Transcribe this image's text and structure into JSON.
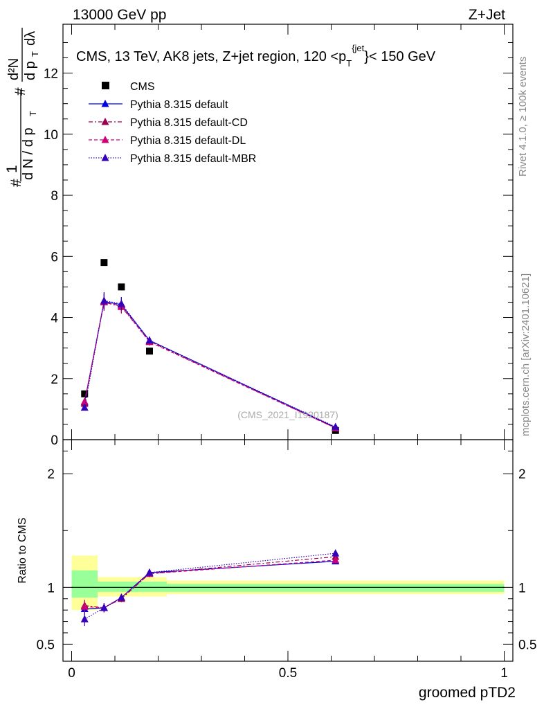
{
  "header": {
    "left": "13000 GeV pp",
    "right": "Z+Jet"
  },
  "side_labels": {
    "rivet": "Rivet 4.1.0, ≥ 100k events",
    "mcplots": "mcplots.cern.ch [arXiv:2401.10621]"
  },
  "plot_title": "CMS, 13 TeV, AK8 jets, Z+jet region, 120 <p_T^{jet}< 150 GeV",
  "watermark": "(CMS_2021_I1920187)",
  "y_axis_label": "1/(dN/dp_T) d²N/(dp_T dλ)",
  "ratio_axis_label": "Ratio to CMS",
  "x_axis_label": "groomed pTD2",
  "colors": {
    "data": "#000000",
    "default": "#0000dd",
    "cd": "#99004d",
    "dl": "#cc0077",
    "mbr": "#3300bb",
    "band_inner": "#99ff99",
    "band_outer": "#ffff99"
  },
  "chart_data": [
    {
      "type": "scatter",
      "panel": "main",
      "xlim": [
        -0.02,
        1.02
      ],
      "ylim": [
        0,
        13.6
      ],
      "yticks": [
        0,
        2,
        4,
        6,
        8,
        10,
        12
      ],
      "ytick_labels": [
        "0",
        "2",
        "4",
        "6",
        "8",
        "10",
        "12"
      ],
      "legend_position": "top-left",
      "series": [
        {
          "name": "CMS",
          "key": "data",
          "style": "square",
          "x": [
            0.03,
            0.075,
            0.115,
            0.18,
            0.61
          ],
          "y": [
            1.5,
            5.8,
            5.0,
            2.9,
            0.3
          ]
        },
        {
          "name": "Pythia 8.315 default",
          "key": "default",
          "style": "solid",
          "x": [
            0.03,
            0.075,
            0.115,
            0.18,
            0.61
          ],
          "y": [
            1.22,
            4.52,
            4.42,
            3.25,
            0.4
          ],
          "err": [
            0.08,
            0.28,
            0.22,
            0.12,
            0.03
          ]
        },
        {
          "name": "Pythia 8.315 default-CD",
          "key": "cd",
          "style": "dashdot",
          "x": [
            0.03,
            0.075,
            0.115,
            0.18,
            0.61
          ],
          "y": [
            1.18,
            4.5,
            4.35,
            3.22,
            0.38
          ],
          "err": [
            0.08,
            0.28,
            0.22,
            0.12,
            0.03
          ]
        },
        {
          "name": "Pythia 8.315 default-DL",
          "key": "dl",
          "style": "dashed",
          "x": [
            0.03,
            0.075,
            0.115,
            0.18,
            0.61
          ],
          "y": [
            1.25,
            4.5,
            4.38,
            3.2,
            0.38
          ],
          "err": [
            0.08,
            0.28,
            0.22,
            0.12,
            0.03
          ]
        },
        {
          "name": "Pythia 8.315 default-MBR",
          "key": "mbr",
          "style": "dotted",
          "x": [
            0.03,
            0.075,
            0.115,
            0.18,
            0.61
          ],
          "y": [
            1.05,
            4.55,
            4.45,
            3.25,
            0.42
          ],
          "err": [
            0.08,
            0.28,
            0.22,
            0.12,
            0.03
          ]
        }
      ]
    },
    {
      "type": "line",
      "panel": "ratio",
      "xlim": [
        -0.02,
        1.02
      ],
      "ylim": [
        0.35,
        2.3
      ],
      "yticks": [
        0.5,
        1,
        2
      ],
      "ytick_labels": [
        "0.5",
        "1",
        "2"
      ],
      "xticks": [
        0,
        0.5,
        1
      ],
      "xtick_labels": [
        "0",
        "0.5",
        "1"
      ],
      "reference": 1,
      "bands": [
        {
          "x0": 0.0,
          "x1": 0.06,
          "inner": [
            0.91,
            1.15
          ],
          "outer": [
            0.8,
            1.28
          ]
        },
        {
          "x0": 0.06,
          "x1": 0.18,
          "inner": [
            0.96,
            1.05
          ],
          "outer": [
            0.92,
            1.09
          ]
        },
        {
          "x0": 0.18,
          "x1": 0.22,
          "inner": [
            0.96,
            1.05
          ],
          "outer": [
            0.92,
            1.09
          ]
        },
        {
          "x0": 0.22,
          "x1": 1.0,
          "inner": [
            0.96,
            1.03
          ],
          "outer": [
            0.94,
            1.06
          ]
        }
      ],
      "series": [
        {
          "name": "Pythia 8.315 default",
          "key": "default",
          "style": "solid",
          "x": [
            0.03,
            0.075,
            0.115,
            0.18,
            0.61
          ],
          "y": [
            0.81,
            0.82,
            0.91,
            1.13,
            1.23
          ],
          "err": [
            0.05,
            0.04,
            0.03,
            0.03,
            0.02
          ]
        },
        {
          "name": "Pythia 8.315 default-CD",
          "key": "cd",
          "style": "dashdot",
          "x": [
            0.03,
            0.075,
            0.115,
            0.18,
            0.61
          ],
          "y": [
            0.84,
            0.82,
            0.9,
            1.12,
            1.27
          ],
          "err": [
            0.05,
            0.04,
            0.03,
            0.03,
            0.02
          ]
        },
        {
          "name": "Pythia 8.315 default-DL",
          "key": "dl",
          "style": "dashed",
          "x": [
            0.03,
            0.075,
            0.115,
            0.18,
            0.61
          ],
          "y": [
            0.83,
            0.82,
            0.91,
            1.12,
            1.24
          ],
          "err": [
            0.05,
            0.04,
            0.03,
            0.03,
            0.02
          ]
        },
        {
          "name": "Pythia 8.315 default-MBR",
          "key": "mbr",
          "style": "dotted",
          "x": [
            0.03,
            0.075,
            0.115,
            0.18,
            0.61
          ],
          "y": [
            0.72,
            0.82,
            0.91,
            1.13,
            1.3
          ],
          "err": [
            0.06,
            0.04,
            0.03,
            0.03,
            0.02
          ]
        }
      ]
    }
  ]
}
